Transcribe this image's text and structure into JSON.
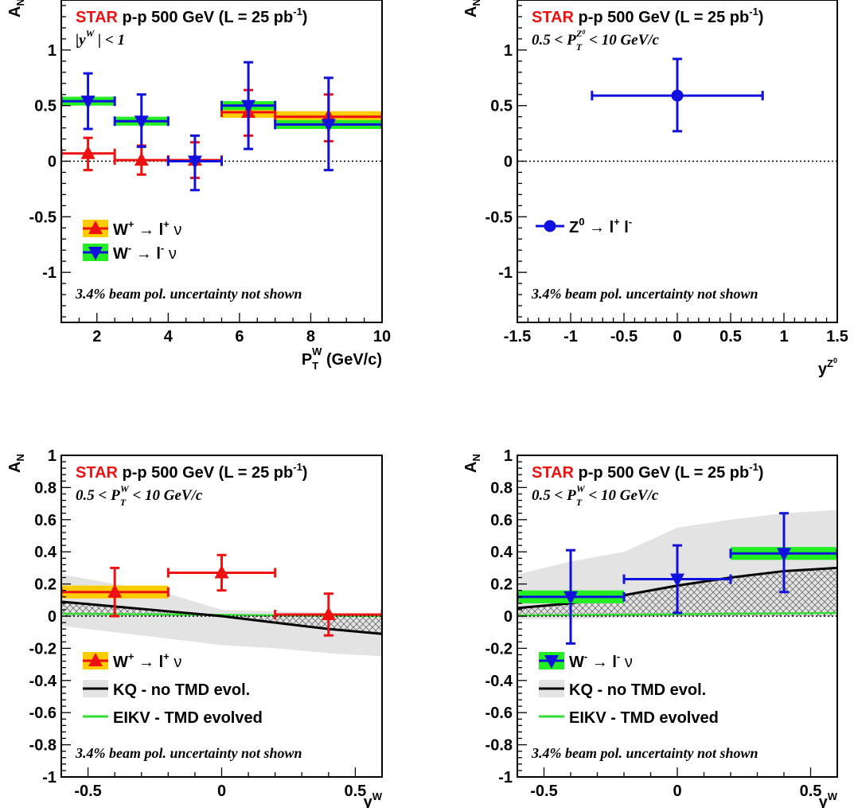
{
  "colors": {
    "red": "#ee1111",
    "blue": "#1111dd",
    "yellow": "#ffcc00",
    "green": "#22ee22",
    "band_gray": "#e3e3e3",
    "hatch": "#666666",
    "kq_line": "#000000",
    "eikv_line": "#33dd33"
  },
  "chart_data": [
    {
      "id": "top-left",
      "type": "scatter",
      "header": {
        "star": "STAR",
        "rest": "p-p 500 GeV (L = 25 pb",
        "sup": "-1",
        "close": ")"
      },
      "subtitle": "|y^W| < 1",
      "footnote": "3.4% beam pol. uncertainty not shown",
      "ylabel": "A_N",
      "xlabel": "P_T^W (GeV/c)",
      "xlim": [
        1,
        10
      ],
      "ylim": [
        -1.45,
        1.45
      ],
      "xticks": [
        2,
        4,
        6,
        8,
        10
      ],
      "yticks": [
        -1,
        -0.5,
        0,
        0.5,
        1
      ],
      "series": [
        {
          "name": "W+ -> l+ nu",
          "legend": {
            "w": "W",
            "wsup": "+",
            "arrow": " → ",
            "l": "l",
            "lsup": "+",
            "nu": " ν"
          },
          "color": "red",
          "box_color": "yellow",
          "marker": "triangle-up",
          "points": [
            {
              "x": 1.75,
              "xlo": 1.0,
              "xhi": 2.5,
              "y": 0.07,
              "ylo": -0.08,
              "yhi": 0.21,
              "sys": 0.0
            },
            {
              "x": 3.25,
              "xlo": 2.5,
              "xhi": 4.0,
              "y": 0.01,
              "ylo": -0.12,
              "yhi": 0.14,
              "sys": 0.0
            },
            {
              "x": 4.75,
              "xlo": 4.0,
              "xhi": 5.5,
              "y": 0.01,
              "ylo": -0.15,
              "yhi": 0.17,
              "sys": 0.0
            },
            {
              "x": 6.25,
              "xlo": 5.5,
              "xhi": 7.0,
              "y": 0.44,
              "ylo": 0.23,
              "yhi": 0.64,
              "sys": 0.05
            },
            {
              "x": 8.5,
              "xlo": 7.0,
              "xhi": 10.0,
              "y": 0.4,
              "ylo": 0.18,
              "yhi": 0.6,
              "sys": 0.05
            }
          ]
        },
        {
          "name": "W- -> l- nu",
          "legend": {
            "w": "W",
            "wsup": "-",
            "arrow": " → ",
            "l": "l",
            "lsup": "-",
            "nu": " ν"
          },
          "color": "blue",
          "box_color": "green",
          "marker": "triangle-down",
          "points": [
            {
              "x": 1.75,
              "xlo": 1.0,
              "xhi": 2.5,
              "y": 0.54,
              "ylo": 0.29,
              "yhi": 0.79,
              "sys": 0.04
            },
            {
              "x": 3.25,
              "xlo": 2.5,
              "xhi": 4.0,
              "y": 0.36,
              "ylo": 0.13,
              "yhi": 0.6,
              "sys": 0.04
            },
            {
              "x": 4.75,
              "xlo": 4.0,
              "xhi": 5.5,
              "y": 0.0,
              "ylo": -0.26,
              "yhi": 0.23,
              "sys": 0.0
            },
            {
              "x": 6.25,
              "xlo": 5.5,
              "xhi": 7.0,
              "y": 0.5,
              "ylo": 0.11,
              "yhi": 0.89,
              "sys": 0.04
            },
            {
              "x": 8.5,
              "xlo": 7.0,
              "xhi": 10.0,
              "y": 0.33,
              "ylo": -0.08,
              "yhi": 0.75,
              "sys": 0.04
            }
          ]
        }
      ]
    },
    {
      "id": "top-right",
      "type": "scatter",
      "header": {
        "star": "STAR",
        "rest": "p-p 500 GeV (L = 25 pb",
        "sup": "-1",
        "close": ")"
      },
      "subtitle": "0.5 < P_T^Z0 < 10 GeV/c",
      "footnote": "3.4% beam pol. uncertainty not shown",
      "ylabel": "A_N",
      "xlabel": "y^Z0",
      "xlim": [
        -1.5,
        1.5
      ],
      "ylim": [
        -1.45,
        1.45
      ],
      "xticks": [
        -1.5,
        -1,
        -0.5,
        0,
        0.5,
        1,
        1.5
      ],
      "yticks": [
        -1,
        -0.5,
        0,
        0.5,
        1
      ],
      "series": [
        {
          "name": "Z0 -> l+ l-",
          "legend": {
            "z": "Z",
            "zsup": "0",
            "arrow": " → ",
            "l1": "l",
            "l1sup": "+",
            "l2": " l",
            "l2sup": "-"
          },
          "color": "blue",
          "marker": "circle",
          "points": [
            {
              "x": 0.0,
              "xlo": -0.8,
              "xhi": 0.8,
              "y": 0.59,
              "ylo": 0.27,
              "yhi": 0.92,
              "sys": 0.0
            }
          ]
        }
      ]
    },
    {
      "id": "bottom-left",
      "type": "scatter",
      "header": {
        "star": "STAR",
        "rest": "p-p 500 GeV (L = 25 pb",
        "sup": "-1",
        "close": ")"
      },
      "subtitle": "0.5 < P_T^W < 10 GeV/c",
      "footnote": "3.4% beam pol. uncertainty not shown",
      "ylabel": "A_N",
      "xlabel": "y^W",
      "xlim": [
        -0.6,
        0.6
      ],
      "ylim": [
        -1,
        1
      ],
      "xticks": [
        -0.5,
        0,
        0.5
      ],
      "yticks": [
        -1,
        -0.8,
        -0.6,
        -0.4,
        -0.2,
        0,
        0.2,
        0.4,
        0.6,
        0.8,
        1
      ],
      "theory": {
        "kq_label": "KQ - no TMD evol.",
        "eikv_label": "EIKV - TMD evolved",
        "kq_line": [
          [
            -0.6,
            0.09
          ],
          [
            -0.4,
            0.06
          ],
          [
            -0.2,
            0.03
          ],
          [
            0.0,
            0.0
          ],
          [
            0.2,
            -0.04
          ],
          [
            0.4,
            -0.08
          ],
          [
            0.6,
            -0.11
          ]
        ],
        "gray_upper": [
          [
            -0.6,
            0.26
          ],
          [
            -0.4,
            0.2
          ],
          [
            -0.2,
            0.14
          ],
          [
            0.0,
            0.04
          ],
          [
            0.2,
            0.03
          ],
          [
            0.4,
            0.02
          ],
          [
            0.6,
            0.01
          ]
        ],
        "gray_lower": [
          [
            -0.6,
            -0.06
          ],
          [
            -0.4,
            -0.1
          ],
          [
            -0.2,
            -0.14
          ],
          [
            0.0,
            -0.18
          ],
          [
            0.2,
            -0.2
          ],
          [
            0.4,
            -0.23
          ],
          [
            0.6,
            -0.25
          ]
        ],
        "hatch_upper": [
          [
            -0.6,
            0.09
          ],
          [
            -0.4,
            0.06
          ],
          [
            -0.2,
            0.03
          ],
          [
            0.0,
            0.0
          ],
          [
            0.2,
            0.0
          ],
          [
            0.4,
            0.0
          ],
          [
            0.6,
            0.0
          ]
        ],
        "hatch_lower": [
          [
            -0.6,
            0.0
          ],
          [
            -0.4,
            0.0
          ],
          [
            -0.2,
            0.0
          ],
          [
            0.0,
            0.0
          ],
          [
            0.2,
            -0.04
          ],
          [
            0.4,
            -0.08
          ],
          [
            0.6,
            -0.11
          ]
        ],
        "eikv_line": [
          [
            -0.6,
            0.015
          ],
          [
            -0.3,
            0.012
          ],
          [
            0.0,
            0.008
          ],
          [
            0.3,
            0.004
          ],
          [
            0.6,
            0.0
          ]
        ]
      },
      "series": [
        {
          "name": "W+ -> l+ nu",
          "legend": {
            "w": "W",
            "wsup": "+",
            "arrow": " → ",
            "l": "l",
            "lsup": "+",
            "nu": " ν"
          },
          "color": "red",
          "box_color": "yellow",
          "marker": "triangle-up",
          "points": [
            {
              "x": -0.4,
              "xlo": -0.6,
              "xhi": -0.2,
              "y": 0.15,
              "ylo": 0.0,
              "yhi": 0.3,
              "sys": 0.04
            },
            {
              "x": 0.0,
              "xlo": -0.2,
              "xhi": 0.2,
              "y": 0.27,
              "ylo": 0.16,
              "yhi": 0.38,
              "sys": 0.0
            },
            {
              "x": 0.4,
              "xlo": 0.2,
              "xhi": 0.6,
              "y": 0.01,
              "ylo": -0.12,
              "yhi": 0.14,
              "sys": 0.0
            }
          ]
        }
      ]
    },
    {
      "id": "bottom-right",
      "type": "scatter",
      "header": {
        "star": "STAR",
        "rest": "p-p 500 GeV (L = 25 pb",
        "sup": "-1",
        "close": ")"
      },
      "subtitle": "0.5 < P_T^W < 10 GeV/c",
      "footnote": "3.4% beam pol. uncertainty not shown",
      "ylabel": "A_N",
      "xlabel": "y^W",
      "xlim": [
        -0.6,
        0.6
      ],
      "ylim": [
        -1,
        1
      ],
      "xticks": [
        -0.5,
        0,
        0.5
      ],
      "yticks": [
        -1,
        -0.8,
        -0.6,
        -0.4,
        -0.2,
        0,
        0.2,
        0.4,
        0.6,
        0.8,
        1
      ],
      "theory": {
        "kq_label": "KQ - no TMD evol.",
        "eikv_label": "EIKV - TMD evolved",
        "kq_line": [
          [
            -0.6,
            0.05
          ],
          [
            -0.4,
            0.08
          ],
          [
            -0.2,
            0.13
          ],
          [
            0.0,
            0.19
          ],
          [
            0.2,
            0.24
          ],
          [
            0.4,
            0.28
          ],
          [
            0.6,
            0.3
          ]
        ],
        "gray_upper": [
          [
            -0.6,
            0.26
          ],
          [
            -0.4,
            0.34
          ],
          [
            -0.2,
            0.4
          ],
          [
            0.0,
            0.55
          ],
          [
            0.2,
            0.6
          ],
          [
            0.4,
            0.64
          ],
          [
            0.6,
            0.66
          ]
        ],
        "gray_lower": [
          [
            -0.6,
            -0.02
          ],
          [
            -0.4,
            -0.02
          ],
          [
            -0.2,
            -0.01
          ],
          [
            0.0,
            0.0
          ],
          [
            0.2,
            0.0
          ],
          [
            0.4,
            0.0
          ],
          [
            0.6,
            0.0
          ]
        ],
        "hatch_upper": [
          [
            -0.6,
            0.05
          ],
          [
            -0.4,
            0.08
          ],
          [
            -0.2,
            0.13
          ],
          [
            0.0,
            0.19
          ],
          [
            0.2,
            0.24
          ],
          [
            0.4,
            0.28
          ],
          [
            0.6,
            0.3
          ]
        ],
        "hatch_lower": [
          [
            -0.6,
            0.0
          ],
          [
            -0.4,
            0.0
          ],
          [
            -0.2,
            0.0
          ],
          [
            0.0,
            0.0
          ],
          [
            0.2,
            0.0
          ],
          [
            0.4,
            0.0
          ],
          [
            0.6,
            0.0
          ]
        ],
        "eikv_line": [
          [
            -0.6,
            0.005
          ],
          [
            -0.3,
            0.008
          ],
          [
            0.0,
            0.012
          ],
          [
            0.3,
            0.016
          ],
          [
            0.6,
            0.02
          ]
        ]
      },
      "series": [
        {
          "name": "W- -> l- nu",
          "legend": {
            "w": "W",
            "wsup": "-",
            "arrow": " → ",
            "l": "l",
            "lsup": "-",
            "nu": " ν"
          },
          "color": "blue",
          "box_color": "green",
          "marker": "triangle-down",
          "points": [
            {
              "x": -0.4,
              "xlo": -0.6,
              "xhi": -0.2,
              "y": 0.12,
              "ylo": -0.17,
              "yhi": 0.41,
              "sys": 0.04
            },
            {
              "x": 0.0,
              "xlo": -0.2,
              "xhi": 0.2,
              "y": 0.23,
              "ylo": 0.02,
              "yhi": 0.44,
              "sys": 0.0
            },
            {
              "x": 0.4,
              "xlo": 0.2,
              "xhi": 0.6,
              "y": 0.39,
              "ylo": 0.15,
              "yhi": 0.64,
              "sys": 0.04
            }
          ]
        }
      ]
    }
  ]
}
